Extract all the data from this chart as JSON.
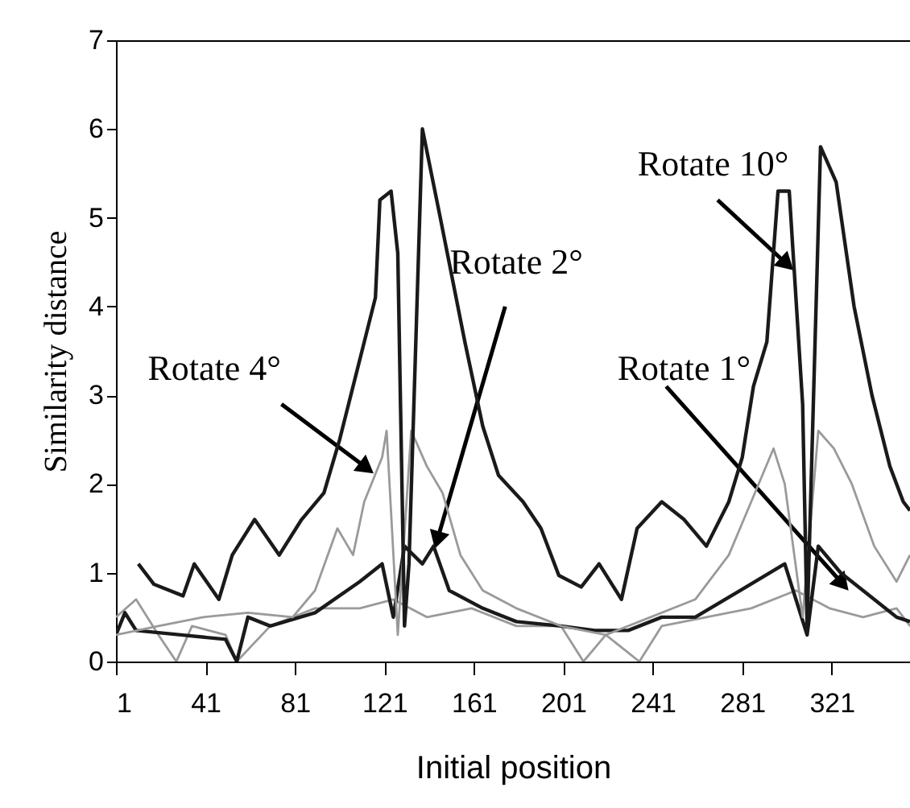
{
  "chart_data": {
    "type": "line",
    "xlabel": "Initial position",
    "ylabel": "Similarity distance",
    "xlim": [
      1,
      356
    ],
    "xticks": [
      1,
      41,
      81,
      121,
      161,
      201,
      241,
      281,
      321
    ],
    "ylim": [
      0,
      7
    ],
    "yticks": [
      0,
      1,
      2,
      3,
      4,
      5,
      6,
      7
    ],
    "grid": false,
    "marker": "none",
    "line_style": "solid",
    "series": [
      {
        "color": "#9a9a9a",
        "x": [
          1,
          10,
          20,
          28,
          35,
          50,
          55,
          70,
          90,
          110,
          125,
          140,
          160,
          180,
          200,
          210,
          220,
          235,
          245,
          265,
          285,
          305,
          320,
          335,
          350,
          356
        ],
        "values": [
          0.5,
          0.7,
          0.3,
          0.0,
          0.4,
          0.3,
          0.0,
          0.4,
          0.6,
          0.6,
          0.7,
          0.5,
          0.6,
          0.4,
          0.4,
          0.0,
          0.3,
          0.0,
          0.4,
          0.5,
          0.6,
          0.8,
          0.6,
          0.5,
          0.6,
          0.4
        ]
      },
      {
        "color": "#1a1a1a",
        "x": [
          1,
          5,
          10,
          30,
          50,
          55,
          60,
          70,
          90,
          110,
          120,
          125,
          130,
          138,
          143,
          150,
          165,
          180,
          200,
          215,
          230,
          245,
          260,
          280,
          300,
          310,
          315,
          325,
          335,
          350,
          356
        ],
        "values": [
          0.3,
          0.55,
          0.35,
          0.3,
          0.25,
          0.0,
          0.5,
          0.4,
          0.55,
          0.9,
          1.1,
          0.5,
          1.3,
          1.1,
          1.3,
          0.8,
          0.6,
          0.45,
          0.4,
          0.35,
          0.35,
          0.5,
          0.5,
          0.8,
          1.1,
          0.3,
          1.3,
          1.0,
          0.8,
          0.5,
          0.45
        ]
      },
      {
        "color": "#9a9a9a",
        "x": [
          1,
          20,
          40,
          60,
          80,
          90,
          100,
          107,
          112,
          120,
          122,
          127,
          133,
          140,
          147,
          155,
          165,
          180,
          200,
          220,
          240,
          260,
          275,
          285,
          295,
          300,
          308,
          315,
          322,
          330,
          340,
          350,
          356
        ],
        "values": [
          0.3,
          0.4,
          0.5,
          0.55,
          0.5,
          0.8,
          1.5,
          1.2,
          1.8,
          2.3,
          2.6,
          0.3,
          2.6,
          2.2,
          1.9,
          1.2,
          0.8,
          0.6,
          0.4,
          0.3,
          0.5,
          0.7,
          1.2,
          1.8,
          2.4,
          2.0,
          0.5,
          2.6,
          2.4,
          2.0,
          1.3,
          0.9,
          1.2
        ]
      },
      {
        "color": "#1a1a1a",
        "x": [
          11,
          18,
          31,
          36,
          47,
          53,
          63,
          74,
          84,
          94,
          101,
          106,
          111,
          117,
          119,
          124,
          127,
          130,
          132,
          138,
          146,
          157,
          165,
          172,
          183,
          191,
          199,
          209,
          217,
          227,
          234,
          245,
          255,
          265,
          275,
          281,
          286,
          292,
          297,
          302,
          308,
          310,
          316,
          323,
          331,
          339,
          347,
          353,
          356
        ],
        "values": [
          1.1,
          0.87,
          0.74,
          1.1,
          0.7,
          1.2,
          1.6,
          1.2,
          1.6,
          1.9,
          2.5,
          3.0,
          3.5,
          4.1,
          5.2,
          5.3,
          4.6,
          0.4,
          1.1,
          6.0,
          5.0,
          3.6,
          2.65,
          2.1,
          1.8,
          1.5,
          0.97,
          0.84,
          1.1,
          0.7,
          1.5,
          1.8,
          1.6,
          1.3,
          1.8,
          2.3,
          3.1,
          3.6,
          5.3,
          5.3,
          2.9,
          0.4,
          5.8,
          5.4,
          4.0,
          3.0,
          2.2,
          1.8,
          1.7
        ]
      }
    ],
    "annotations": [
      {
        "text": "Rotate 4°",
        "x": 112,
        "y": 2.2
      },
      {
        "text": "Rotate 2°",
        "x": 145,
        "y": 1.4
      },
      {
        "text": "Rotate 10°",
        "x": 300,
        "y": 4.5
      },
      {
        "text": "Rotate 1°",
        "x": 325,
        "y": 0.9
      }
    ]
  }
}
